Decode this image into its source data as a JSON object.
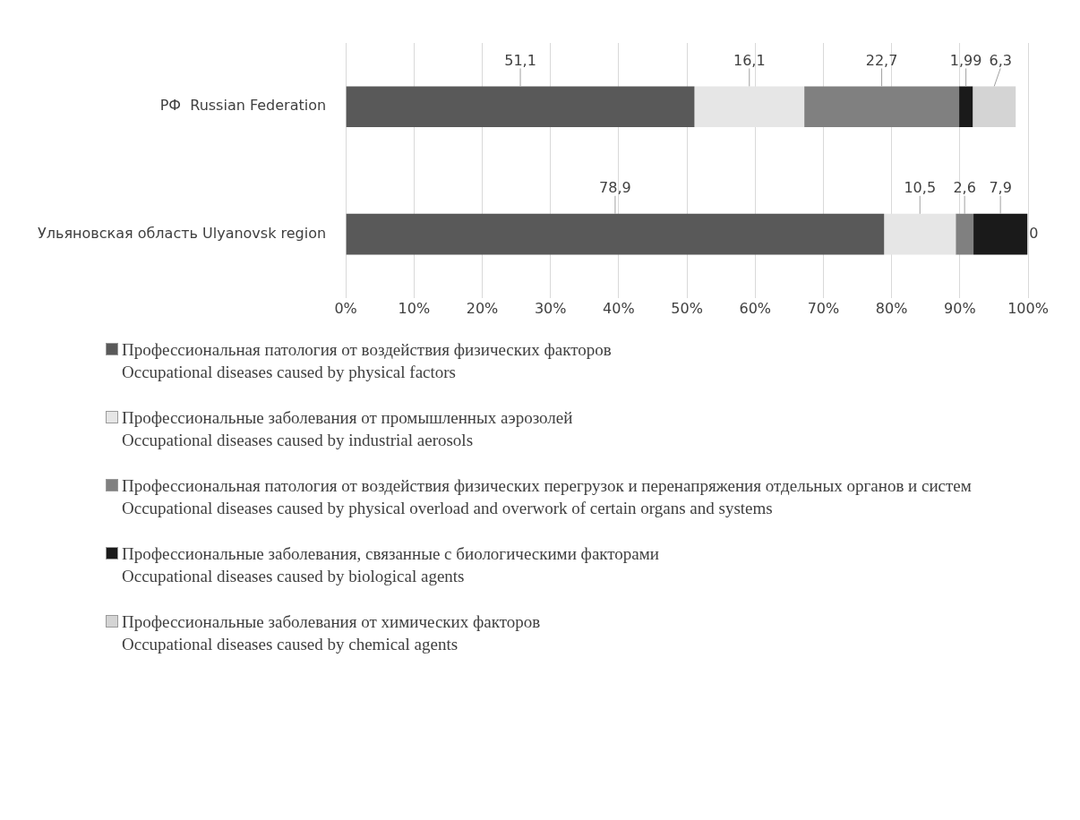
{
  "chart_data": {
    "type": "bar",
    "orientation": "horizontal",
    "stacked": true,
    "categories": [
      "РФ  Russian Federation",
      "Ульяновская область Ulyanovsk region"
    ],
    "series": [
      {
        "name": "Профессиональная патология от воздействия физических факторов\nOccupational diseases caused by physical factors",
        "color": "#595959",
        "values": [
          51.1,
          78.9
        ],
        "value_labels": [
          "51,1",
          "78,9"
        ]
      },
      {
        "name": "Профессиональные заболевания от промышленных аэрозолей\nOccupational diseases caused by industrial aerosols",
        "color": "#e6e6e6",
        "values": [
          16.1,
          10.5
        ],
        "value_labels": [
          "16,1",
          "10,5"
        ]
      },
      {
        "name": "Профессиональная патология от воздействия физических перегрузок и перенапряжения отдельных органов и систем    Occupational diseases caused by physical overload and overwork of certain organs and systems",
        "color": "#808080",
        "values": [
          22.7,
          2.6
        ],
        "value_labels": [
          "22,7",
          "2,6"
        ]
      },
      {
        "name": "Профессиональные заболевания, связанные с биологическими факторами\nOccupational diseases caused by biological agents",
        "color": "#1a1a1a",
        "values": [
          1.99,
          7.9
        ],
        "value_labels": [
          "1,99",
          "7,9"
        ]
      },
      {
        "name": "Профессиональные заболевания от химических факторов\nOccupational diseases caused by chemical agents",
        "color": "#d4d4d4",
        "values": [
          6.3,
          0
        ],
        "value_labels": [
          "6,3",
          "0"
        ]
      }
    ],
    "xlim": [
      0,
      100
    ],
    "xticks": [
      {
        "value": 0,
        "label": "0%"
      },
      {
        "value": 10,
        "label": "10%"
      },
      {
        "value": 20,
        "label": "20%"
      },
      {
        "value": 30,
        "label": "30%"
      },
      {
        "value": 40,
        "label": "40%"
      },
      {
        "value": 50,
        "label": "50%"
      },
      {
        "value": 60,
        "label": "60%"
      },
      {
        "value": 70,
        "label": "70%"
      },
      {
        "value": 80,
        "label": "80%"
      },
      {
        "value": 90,
        "label": "90%"
      },
      {
        "value": 100,
        "label": "100%"
      }
    ],
    "grid": "x",
    "legend": "bottom"
  }
}
